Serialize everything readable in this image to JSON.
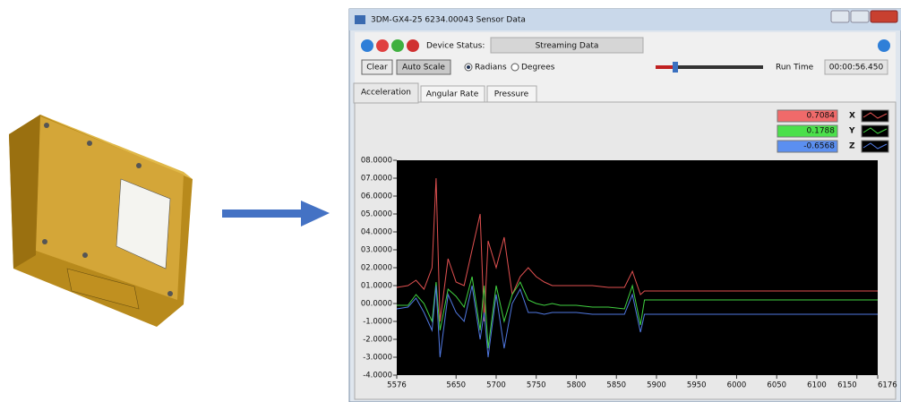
{
  "window": {
    "title": "3DM-GX4-25 6234.00043 Sensor Data",
    "device_status_label": "Device Status:",
    "device_status": "Streaming Data",
    "clear": "Clear",
    "auto_scale": "Auto Scale",
    "radians": "Radians",
    "degrees": "Degrees",
    "run_time_label": "Run Time",
    "run_time": "00:00:56.450",
    "tabs": [
      "Acceleration",
      "Angular Rate",
      "Pressure"
    ]
  },
  "chart_data": {
    "type": "line",
    "x": [
      5576,
      5590,
      5600,
      5610,
      5620,
      5625,
      5630,
      5640,
      5650,
      5660,
      5670,
      5680,
      5685,
      5690,
      5700,
      5710,
      5720,
      5730,
      5740,
      5750,
      5760,
      5770,
      5780,
      5800,
      5820,
      5840,
      5860,
      5870,
      5880,
      5885,
      5900,
      5950,
      6000,
      6050,
      6100,
      6150,
      6176
    ],
    "series": [
      {
        "name": "X",
        "color": "#e05050",
        "current": 0.7084,
        "box_color": "#f06a6a",
        "values": [
          0.9,
          1.0,
          1.3,
          0.8,
          2.0,
          7.0,
          -1.0,
          2.5,
          1.2,
          1.0,
          3.0,
          5.0,
          -1.0,
          3.5,
          2.0,
          3.7,
          0.5,
          1.5,
          2.0,
          1.5,
          1.2,
          1.0,
          1.0,
          1.0,
          1.0,
          0.9,
          0.9,
          1.8,
          0.5,
          0.7,
          0.7,
          0.7,
          0.7,
          0.7,
          0.7,
          0.7,
          0.7
        ]
      },
      {
        "name": "Y",
        "color": "#40d040",
        "current": 0.1788,
        "box_color": "#4be04b",
        "values": [
          -0.1,
          -0.1,
          0.5,
          0,
          -1.0,
          1.2,
          -1.5,
          0.8,
          0.4,
          -0.2,
          1.5,
          -1.5,
          1.0,
          -2.5,
          1.0,
          -1.0,
          0.5,
          1.2,
          0.2,
          0,
          -0.1,
          0,
          -0.1,
          -0.1,
          -0.2,
          -0.2,
          -0.3,
          1.0,
          -1.2,
          0.2,
          0.2,
          0.2,
          0.2,
          0.2,
          0.2,
          0.2,
          0.2
        ]
      },
      {
        "name": "Z",
        "color": "#5078e0",
        "current": -0.6568,
        "box_color": "#5b8ff0",
        "values": [
          -0.3,
          -0.2,
          0.3,
          -0.5,
          -1.5,
          1.0,
          -3.0,
          0.5,
          -0.5,
          -1.0,
          1.0,
          -2.0,
          -0.5,
          -3.0,
          0.5,
          -2.5,
          0.0,
          0.8,
          -0.5,
          -0.5,
          -0.6,
          -0.5,
          -0.5,
          -0.5,
          -0.6,
          -0.6,
          -0.6,
          0.5,
          -1.6,
          -0.6,
          -0.6,
          -0.6,
          -0.6,
          -0.6,
          -0.6,
          -0.6,
          -0.6
        ]
      }
    ],
    "xlim": [
      5576,
      6176
    ],
    "xticks": [
      5576,
      5650,
      5700,
      5750,
      5800,
      5850,
      5900,
      5950,
      6000,
      6050,
      6100,
      6150,
      6176
    ],
    "ylim": [
      -4,
      8
    ],
    "yticks": [
      {
        "value": 8,
        "label": "08.0000"
      },
      {
        "value": 7,
        "label": "07.0000"
      },
      {
        "value": 6,
        "label": "06.0000"
      },
      {
        "value": 5,
        "label": "05.0000"
      },
      {
        "value": 4,
        "label": "04.0000"
      },
      {
        "value": 3,
        "label": "03.0000"
      },
      {
        "value": 2,
        "label": "02.0000"
      },
      {
        "value": 1,
        "label": "01.0000"
      },
      {
        "value": 0,
        "label": "00.0000"
      },
      {
        "value": -1,
        "label": "-1.0000"
      },
      {
        "value": -2,
        "label": "-2.0000"
      },
      {
        "value": -3,
        "label": "-3.0000"
      },
      {
        "value": -4,
        "label": "-4.0000"
      }
    ]
  }
}
